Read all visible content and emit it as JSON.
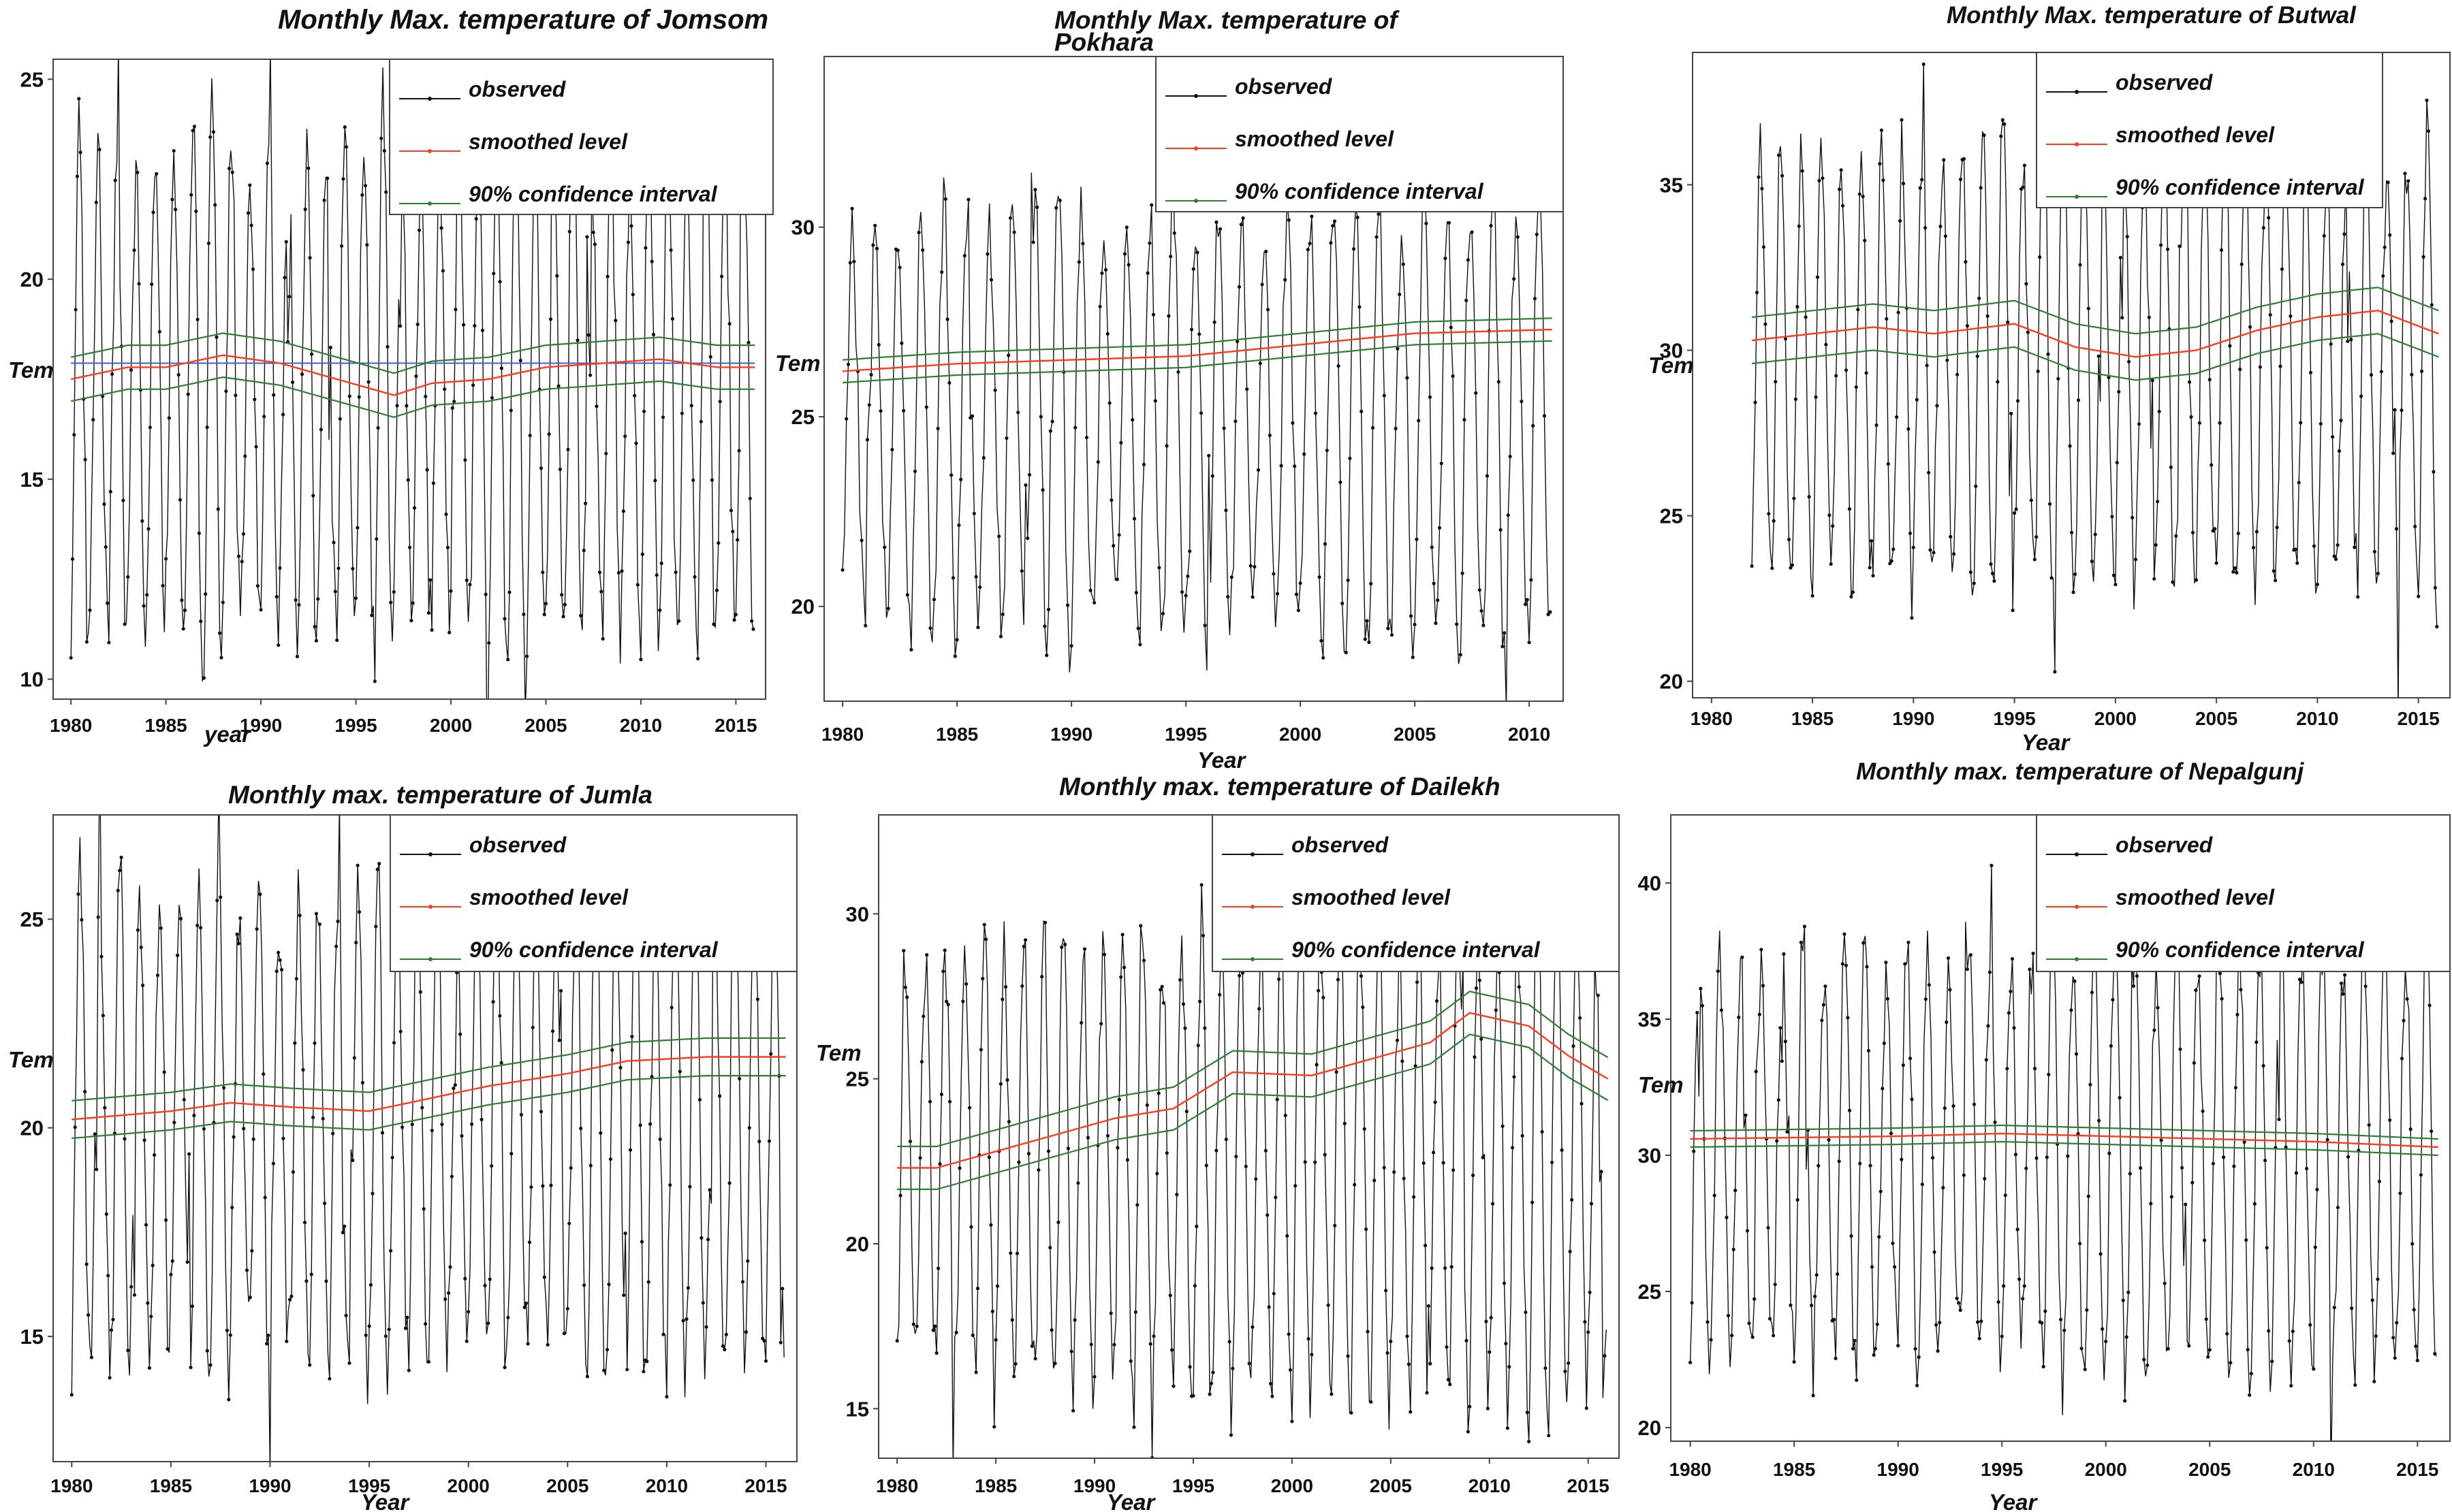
{
  "chart_data": [
    {
      "type": "line",
      "title": "Monthly Max. temperature of Jomsom",
      "xlabel": "year",
      "ylabel": "Tem",
      "xlim": [
        1980,
        2016
      ],
      "ylim": [
        9.5,
        25.5
      ],
      "yticks": [
        10,
        15,
        20,
        25
      ],
      "xticks": [
        1980,
        1985,
        1990,
        1995,
        2000,
        2005,
        2010,
        2015
      ],
      "legend": [
        "observed",
        "smoothed level",
        "90% confidence interval"
      ],
      "legend_position": "top-right",
      "observed_range": [
        1980,
        2016
      ],
      "observed_summary": {
        "typical_max": 23.5,
        "typical_min": 11,
        "mean": 17.5
      },
      "smoothed_level": [
        [
          1980,
          17.5
        ],
        [
          1983,
          17.8
        ],
        [
          1985,
          17.8
        ],
        [
          1988,
          18.1
        ],
        [
          1991,
          17.9
        ],
        [
          1994,
          17.5
        ],
        [
          1997,
          17.1
        ],
        [
          1999,
          17.4
        ],
        [
          2002,
          17.5
        ],
        [
          2005,
          17.8
        ],
        [
          2008,
          17.9
        ],
        [
          2011,
          18.0
        ],
        [
          2014,
          17.8
        ],
        [
          2016,
          17.8
        ]
      ],
      "interval_halfwidth": 0.55,
      "reference_line": 17.9
    },
    {
      "type": "line",
      "title": "Monthly Max. temperature of Pokhara",
      "xlabel": "Year",
      "ylabel": "Tem",
      "xlim": [
        1980,
        2011
      ],
      "ylim": [
        17.5,
        34.5
      ],
      "yticks": [
        20,
        25,
        30
      ],
      "xticks": [
        1980,
        1985,
        1990,
        1995,
        2000,
        2005,
        2010
      ],
      "legend": [
        "observed",
        "smoothed level",
        "90% confidence interval"
      ],
      "legend_position": "top-right",
      "observed_range": [
        1980,
        2011
      ],
      "observed_summary": {
        "typical_max": 30.5,
        "typical_min": 19.2,
        "mean": 25.8
      },
      "smoothed_level": [
        [
          1980,
          26.2
        ],
        [
          1985,
          26.4
        ],
        [
          1990,
          26.5
        ],
        [
          1995,
          26.6
        ],
        [
          2000,
          26.9
        ],
        [
          2005,
          27.2
        ],
        [
          2011,
          27.3
        ]
      ],
      "interval_halfwidth": 0.3
    },
    {
      "type": "line",
      "title": "Monthly Max. temperature of Butwal",
      "xlabel": "Year",
      "ylabel": "Tem",
      "xlim": [
        1980,
        2016
      ],
      "ylim": [
        19.5,
        39
      ],
      "yticks": [
        20,
        25,
        30,
        35
      ],
      "xticks": [
        1980,
        1985,
        1990,
        1995,
        2000,
        2005,
        2010,
        2015
      ],
      "legend": [
        "observed",
        "smoothed level",
        "90% confidence interval"
      ],
      "legend_position": "top-right",
      "observed_range": [
        1982,
        2016
      ],
      "observed_summary": {
        "typical_max": 36,
        "typical_min": 23,
        "mean": 30.3
      },
      "smoothed_level": [
        [
          1982,
          30.3
        ],
        [
          1985,
          30.5
        ],
        [
          1988,
          30.7
        ],
        [
          1991,
          30.5
        ],
        [
          1995,
          30.8
        ],
        [
          1998,
          30.1
        ],
        [
          2001,
          29.8
        ],
        [
          2004,
          30.0
        ],
        [
          2007,
          30.6
        ],
        [
          2010,
          31.0
        ],
        [
          2013,
          31.2
        ],
        [
          2016,
          30.5
        ]
      ],
      "interval_halfwidth": 0.7
    },
    {
      "type": "line",
      "title": "Monthly max. temperature of Jumla",
      "xlabel": "Year",
      "ylabel": "Tem",
      "xlim": [
        1980,
        2016
      ],
      "ylim": [
        12,
        27.5
      ],
      "yticks": [
        15,
        20,
        25
      ],
      "xticks": [
        1980,
        1985,
        1990,
        1995,
        2000,
        2005,
        2010,
        2015
      ],
      "legend": [
        "observed",
        "smoothed level",
        "90% confidence interval"
      ],
      "legend_position": "top-right",
      "observed_range": [
        1980,
        2016
      ],
      "observed_summary": {
        "typical_max": 25.5,
        "typical_min": 14.5,
        "mean": 20.3
      },
      "smoothed_level": [
        [
          1980,
          20.2
        ],
        [
          1985,
          20.4
        ],
        [
          1988,
          20.6
        ],
        [
          1991,
          20.5
        ],
        [
          1995,
          20.4
        ],
        [
          1998,
          20.7
        ],
        [
          2001,
          21.0
        ],
        [
          2005,
          21.3
        ],
        [
          2008,
          21.6
        ],
        [
          2012,
          21.7
        ],
        [
          2016,
          21.7
        ]
      ],
      "interval_halfwidth": 0.45
    },
    {
      "type": "line",
      "title": "Monthly max. temperature of Dailekh",
      "xlabel": "Year",
      "ylabel": "Tem",
      "xlim": [
        1980,
        2016
      ],
      "ylim": [
        13.5,
        33
      ],
      "yticks": [
        15,
        20,
        25,
        30
      ],
      "xticks": [
        1980,
        1985,
        1990,
        1995,
        2000,
        2005,
        2010,
        2015
      ],
      "legend": [
        "observed",
        "smoothed level",
        "90% confidence interval"
      ],
      "legend_position": "top-right",
      "observed_range": [
        1980,
        2016
      ],
      "observed_summary": {
        "typical_max": 29.5,
        "typical_min": 15.5,
        "mean": 23
      },
      "smoothed_level": [
        [
          1980,
          22.3
        ],
        [
          1982,
          22.3
        ],
        [
          1985,
          22.8
        ],
        [
          1988,
          23.3
        ],
        [
          1991,
          23.8
        ],
        [
          1994,
          24.1
        ],
        [
          1997,
          25.2
        ],
        [
          2001,
          25.1
        ],
        [
          2004,
          25.6
        ],
        [
          2007,
          26.1
        ],
        [
          2009,
          27.0
        ],
        [
          2012,
          26.6
        ],
        [
          2014,
          25.7
        ],
        [
          2016,
          25.0
        ]
      ],
      "interval_halfwidth": 0.65
    },
    {
      "type": "line",
      "title": "Monthly max. temperature of Nepalgunj",
      "xlabel": "Year",
      "ylabel": "Tem",
      "xlim": [
        1980,
        2016
      ],
      "ylim": [
        19.5,
        42.5
      ],
      "yticks": [
        20,
        25,
        30,
        35,
        40
      ],
      "xticks": [
        1980,
        1985,
        1990,
        1995,
        2000,
        2005,
        2010,
        2015
      ],
      "legend": [
        "observed",
        "smoothed level",
        "90% confidence interval"
      ],
      "legend_position": "top-right",
      "observed_range": [
        1980,
        2016
      ],
      "observed_summary": {
        "typical_max": 37.5,
        "typical_min": 22.5,
        "mean": 30.5
      },
      "smoothed_level": [
        [
          1980,
          30.6
        ],
        [
          1990,
          30.7
        ],
        [
          1995,
          30.8
        ],
        [
          2000,
          30.7
        ],
        [
          2005,
          30.6
        ],
        [
          2010,
          30.5
        ],
        [
          2016,
          30.3
        ]
      ],
      "interval_halfwidth": 0.3
    }
  ],
  "colors": {
    "observed": "#111111",
    "smoothed": "#ff3b1f",
    "interval": "#2e7d32",
    "reference": "#3f5fcf",
    "frame": "#444444"
  }
}
